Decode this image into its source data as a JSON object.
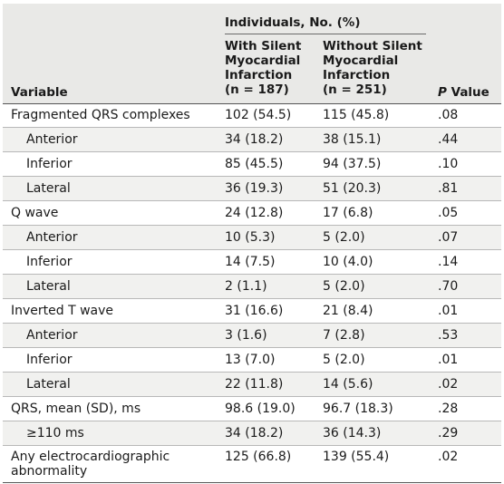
{
  "header": {
    "variable": "Variable",
    "group": "Individuals, No. (%)",
    "col_with": [
      "With Silent",
      "Myocardial",
      "Infarction",
      "(n = 187)"
    ],
    "col_without": [
      "Without Silent",
      "Myocardial",
      "Infarction",
      "(n = 251)"
    ],
    "p_italic": "P",
    "p_rest": " Value"
  },
  "rows": [
    {
      "variable": "Fragmented QRS complexes",
      "with": "102 (54.5)",
      "without": "115 (45.8)",
      "p": ".08",
      "indent": false
    },
    {
      "variable": "Anterior",
      "with": "34 (18.2)",
      "without": "38 (15.1)",
      "p": ".44",
      "indent": true
    },
    {
      "variable": "Inferior",
      "with": "85 (45.5)",
      "without": "94 (37.5)",
      "p": ".10",
      "indent": true
    },
    {
      "variable": "Lateral",
      "with": "36 (19.3)",
      "without": "51 (20.3)",
      "p": ".81",
      "indent": true
    },
    {
      "variable": "Q wave",
      "with": "24 (12.8)",
      "without": "17 (6.8)",
      "p": ".05",
      "indent": false
    },
    {
      "variable": "Anterior",
      "with": "10 (5.3)",
      "without": "5 (2.0)",
      "p": ".07",
      "indent": true
    },
    {
      "variable": "Inferior",
      "with": "14 (7.5)",
      "without": "10 (4.0)",
      "p": ".14",
      "indent": true
    },
    {
      "variable": "Lateral",
      "with": "2 (1.1)",
      "without": "5 (2.0)",
      "p": ".70",
      "indent": true
    },
    {
      "variable": "Inverted T wave",
      "with": "31 (16.6)",
      "without": "21 (8.4)",
      "p": ".01",
      "indent": false
    },
    {
      "variable": "Anterior",
      "with": "3 (1.6)",
      "without": "7 (2.8)",
      "p": ".53",
      "indent": true
    },
    {
      "variable": "Inferior",
      "with": "13 (7.0)",
      "without": "5 (2.0)",
      "p": ".01",
      "indent": true
    },
    {
      "variable": "Lateral",
      "with": "22 (11.8)",
      "without": "14 (5.6)",
      "p": ".02",
      "indent": true
    },
    {
      "variable": "QRS, mean (SD), ms",
      "with": "98.6 (19.0)",
      "without": "96.7 (18.3)",
      "p": ".28",
      "indent": false
    },
    {
      "variable": "≥110 ms",
      "with": "34 (18.2)",
      "without": "36 (14.3)",
      "p": ".29",
      "indent": true
    },
    {
      "variable": "Any electrocardiographic abnormality",
      "with": "125 (66.8)",
      "without": "139 (55.4)",
      "p": ".02",
      "indent": false
    }
  ]
}
